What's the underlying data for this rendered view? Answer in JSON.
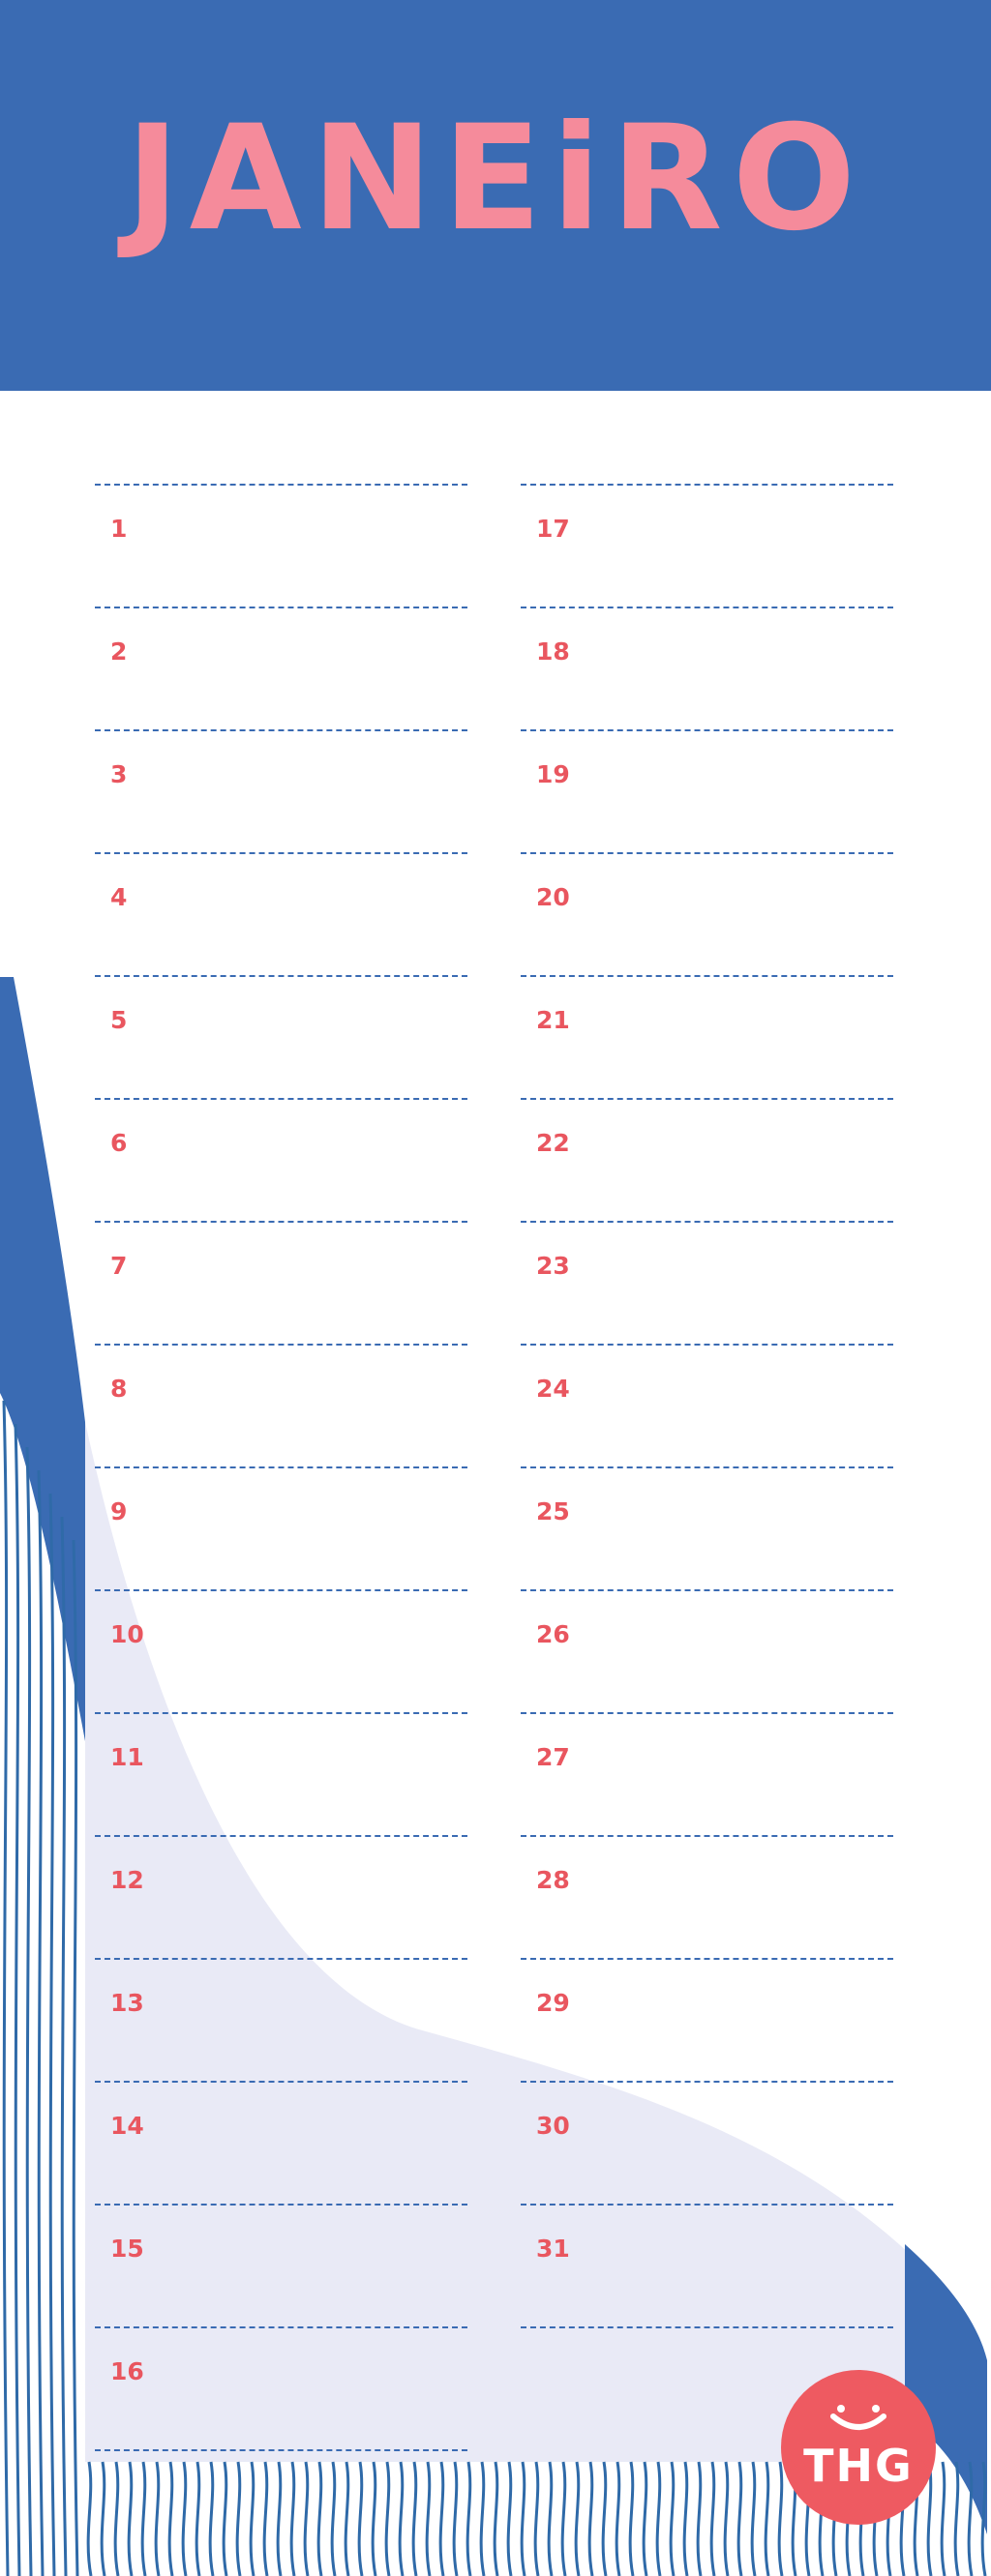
{
  "header": {
    "title": "JANEiRO",
    "bg_color": "#3a6bb3",
    "title_color": "#f58b9b"
  },
  "days_left": [
    "1",
    "2",
    "3",
    "4",
    "5",
    "6",
    "7",
    "8",
    "9",
    "10",
    "11",
    "12",
    "13",
    "14",
    "15",
    "16"
  ],
  "days_right": [
    "17",
    "18",
    "19",
    "20",
    "21",
    "22",
    "23",
    "24",
    "25",
    "26",
    "27",
    "28",
    "29",
    "30",
    "31"
  ],
  "logo": {
    "text": "THG",
    "color": "#ee5a61"
  },
  "colors": {
    "blue": "#3a6bb3",
    "lavender": "#e9eaf6",
    "number": "#e9565f"
  }
}
